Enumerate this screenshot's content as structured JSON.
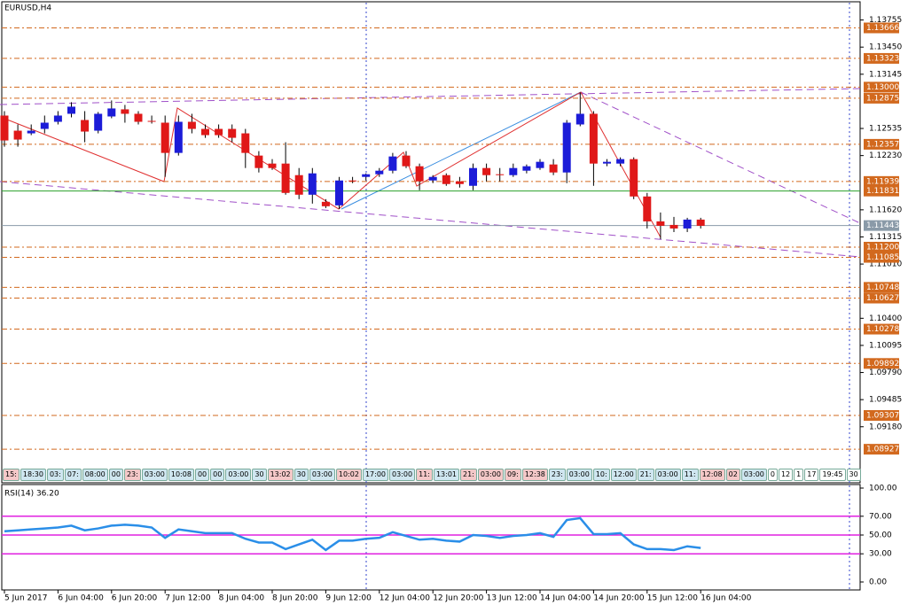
{
  "chart_data": [
    {
      "type": "candlestick",
      "title": "EURUSD,H4",
      "categories": [
        "5 Jun 2017",
        null,
        null,
        null,
        "6 Jun 04:00",
        null,
        null,
        null,
        "6 Jun 20:00",
        null,
        null,
        null,
        "7 Jun 12:00",
        null,
        null,
        null,
        "8 Jun 04:00",
        null,
        null,
        null,
        "8 Jun 20:00",
        null,
        null,
        null,
        "9 Jun 12:00",
        null,
        null,
        null,
        "12 Jun 04:00",
        null,
        null,
        null,
        "12 Jun 20:00",
        null,
        null,
        null,
        "13 Jun 12:00",
        null,
        null,
        null,
        "14 Jun 04:00",
        null,
        null,
        null,
        "14 Jun 20:00",
        null,
        null,
        null,
        "15 Jun 12:00",
        null,
        null,
        null,
        "16 Jun 04:00"
      ],
      "open": [
        1.1268,
        1.1251,
        1.1248,
        1.1253,
        1.1261,
        1.127,
        1.1263,
        1.1251,
        1.1267,
        1.1275,
        1.127,
        1.1262,
        1.126,
        1.1226,
        1.1261,
        1.1253,
        1.1253,
        1.1253,
        1.1248,
        1.1223,
        1.1214,
        1.1214,
        1.1201,
        1.1179,
        1.1171,
        1.1167,
        1.1195,
        1.1199,
        1.1202,
        1.1206,
        1.1223,
        1.1211,
        1.1195,
        1.1201,
        1.1194,
        1.1189,
        1.1209,
        1.1202,
        1.1201,
        1.1206,
        1.1209,
        1.1213,
        1.1204,
        1.1258,
        1.127,
        1.1214,
        1.1214,
        1.1219,
        1.1177,
        1.1149,
        1.1145,
        1.1141,
        1.1151
      ],
      "high": [
        1.1273,
        1.1258,
        1.1258,
        1.1268,
        1.1273,
        1.1283,
        1.1273,
        1.1272,
        1.1285,
        1.128,
        1.1273,
        1.1268,
        1.1268,
        1.1268,
        1.127,
        1.1258,
        1.1258,
        1.1258,
        1.1253,
        1.1228,
        1.1219,
        1.1238,
        1.1209,
        1.1209,
        1.1174,
        1.1199,
        1.1199,
        1.1203,
        1.1209,
        1.1226,
        1.1228,
        1.1214,
        1.1201,
        1.1203,
        1.1199,
        1.1214,
        1.1214,
        1.1209,
        1.1214,
        1.1213,
        1.1219,
        1.1219,
        1.1263,
        1.1294,
        1.1273,
        1.1219,
        1.1221,
        1.1221,
        1.1181,
        1.1159,
        1.1154,
        1.1153,
        1.1153
      ],
      "low": [
        1.1233,
        1.1233,
        1.1246,
        1.1248,
        1.1258,
        1.1266,
        1.1238,
        1.1248,
        1.1265,
        1.126,
        1.1258,
        1.1259,
        1.1199,
        1.1223,
        1.1248,
        1.1243,
        1.1243,
        1.1238,
        1.1209,
        1.1204,
        1.1207,
        1.1179,
        1.1174,
        1.1169,
        1.1164,
        1.1163,
        1.1192,
        1.1195,
        1.1199,
        1.1203,
        1.1209,
        1.1184,
        1.1192,
        1.1189,
        1.1187,
        1.1184,
        1.1194,
        1.1194,
        1.1199,
        1.1203,
        1.1207,
        1.1201,
        1.1192,
        1.1256,
        1.1189,
        1.1211,
        1.1211,
        1.1174,
        1.1141,
        1.1129,
        1.1137,
        1.1137,
        1.1141
      ],
      "close": [
        1.124,
        1.1241,
        1.1251,
        1.126,
        1.1268,
        1.1278,
        1.125,
        1.127,
        1.1276,
        1.127,
        1.1261,
        1.1261,
        1.1226,
        1.1261,
        1.1253,
        1.1246,
        1.1246,
        1.1243,
        1.1226,
        1.1209,
        1.1209,
        1.1181,
        1.1179,
        1.1203,
        1.1166,
        1.1195,
        1.1194,
        1.1202,
        1.1206,
        1.1222,
        1.1211,
        1.1194,
        1.1199,
        1.1191,
        1.1191,
        1.1209,
        1.1201,
        1.1201,
        1.1209,
        1.1211,
        1.1216,
        1.1204,
        1.126,
        1.127,
        1.1214,
        1.1216,
        1.1219,
        1.1177,
        1.1149,
        1.1144,
        1.1141,
        1.1151,
        1.1144
      ],
      "up_color": "#1c1cd8",
      "down_color": "#e01818",
      "ylim": [
        1.0855,
        1.1395
      ],
      "yticks": [
        1.13755,
        {
          "value": 1.1345,
          "label": "1.13450"
        },
        1.13145,
        1.12535,
        {
          "value": 1.1223,
          "label": "1.12230"
        },
        {
          "value": 1.1162,
          "label": "1.11620"
        },
        1.11315,
        {
          "value": 1.1101,
          "label": "1.11010"
        },
        {
          "value": 1.104,
          "label": "1.10400"
        },
        1.10095,
        {
          "value": 1.0979,
          "label": "1.09790"
        },
        1.09485,
        {
          "value": 1.0918,
          "label": "1.09180"
        }
      ],
      "levels": [
        1.13666,
        1.13323,
        {
          "value": 1.13,
          "label": "1.13000"
        },
        1.12875,
        1.12357,
        1.11939,
        {
          "value": 1.112,
          "label": "1.11200"
        },
        1.11085,
        1.10748,
        1.10627,
        1.10278,
        1.09892,
        1.09307,
        1.08927
      ],
      "level_color": "#d2691e",
      "support": 1.11831,
      "support_color": "#2aa02a",
      "bid": 1.11443,
      "bid_color": "#8a9aa8"
    },
    {
      "type": "line",
      "title": "RSI(14) 36.20",
      "values": [
        54,
        55,
        56,
        57,
        58,
        60,
        55,
        57,
        60,
        61,
        60,
        58,
        47,
        56,
        54,
        52,
        52,
        52,
        46,
        42,
        42,
        35,
        40,
        45,
        34,
        44,
        44,
        46,
        47,
        53,
        49,
        45,
        46,
        44,
        43,
        50,
        49,
        47,
        49,
        50,
        52,
        48,
        66,
        68,
        51,
        51,
        52,
        40,
        35,
        35,
        34,
        38,
        36.2
      ],
      "color": "#2a8ee8",
      "ylim": [
        0,
        100
      ],
      "yticks": [
        {
          "value": 100,
          "label": "100.00"
        },
        {
          "value": 70,
          "label": "70.00"
        },
        {
          "value": 50,
          "label": "50.00"
        },
        {
          "value": 30,
          "label": "30.00"
        },
        {
          "value": 0,
          "label": "0.00"
        }
      ],
      "levels": [
        70,
        50,
        30
      ],
      "level_color": "#e020e0"
    }
  ],
  "sessions": [
    {
      "text": "15:",
      "color": "#f4c8c8"
    },
    {
      "text": "18:30",
      "color": "#cfe6f0"
    },
    {
      "text": "03:",
      "color": "#cfe6f0"
    },
    {
      "text": "07:",
      "color": "#cfe6f0"
    },
    {
      "text": "08:00",
      "color": "#cfe6f0"
    },
    {
      "text": "00",
      "color": "#cfe6f0"
    },
    {
      "text": "23:",
      "color": "#f4c8c8"
    },
    {
      "text": "03:00",
      "color": "#cfe6f0"
    },
    {
      "text": "10:08",
      "color": "#cfe6f0"
    },
    {
      "text": "00",
      "color": "#cfe6f0"
    },
    {
      "text": "00",
      "color": "#cfe6f0"
    },
    {
      "text": "03:00",
      "color": "#cfe6f0"
    },
    {
      "text": "30",
      "color": "#cfe6f0"
    },
    {
      "text": "13:02",
      "color": "#f4c8c8"
    },
    {
      "text": "30",
      "color": "#cfe6f0"
    },
    {
      "text": "03:00",
      "color": "#cfe6f0"
    },
    {
      "text": "10:02",
      "color": "#f4c8c8"
    },
    {
      "text": "17:00",
      "color": "#cfe6f0"
    },
    {
      "text": "03:00",
      "color": "#cfe6f0"
    },
    {
      "text": "11:",
      "color": "#f4c8c8"
    },
    {
      "text": "13:01",
      "color": "#cfe6f0"
    },
    {
      "text": "21:",
      "color": "#f4c8c8"
    },
    {
      "text": "03:00",
      "color": "#f4c8c8"
    },
    {
      "text": "09:",
      "color": "#f4c8c8"
    },
    {
      "text": "12:38",
      "color": "#f4c8c8"
    },
    {
      "text": "23:",
      "color": "#cfe6f0"
    },
    {
      "text": "03:00",
      "color": "#cfe6f0"
    },
    {
      "text": "10:",
      "color": "#cfe6f0"
    },
    {
      "text": "12:00",
      "color": "#cfe6f0"
    },
    {
      "text": "21:",
      "color": "#cfe6f0"
    },
    {
      "text": "03:00",
      "color": "#cfe6f0"
    },
    {
      "text": "11:",
      "color": "#cfe6f0"
    },
    {
      "text": "12:08",
      "color": "#f4c8c8"
    },
    {
      "text": "02",
      "color": "#f4c8c8"
    },
    {
      "text": "03:00",
      "color": "#cfe6f0"
    },
    {
      "text": "0",
      "color": "#ffffff"
    },
    {
      "text": "12",
      "color": "#ffffff"
    },
    {
      "text": "1",
      "color": "#ffffff"
    },
    {
      "text": "17",
      "color": "#ffffff"
    },
    {
      "text": "19:45",
      "color": "#ffffff"
    },
    {
      "text": "30",
      "color": "#ffffff"
    }
  ]
}
